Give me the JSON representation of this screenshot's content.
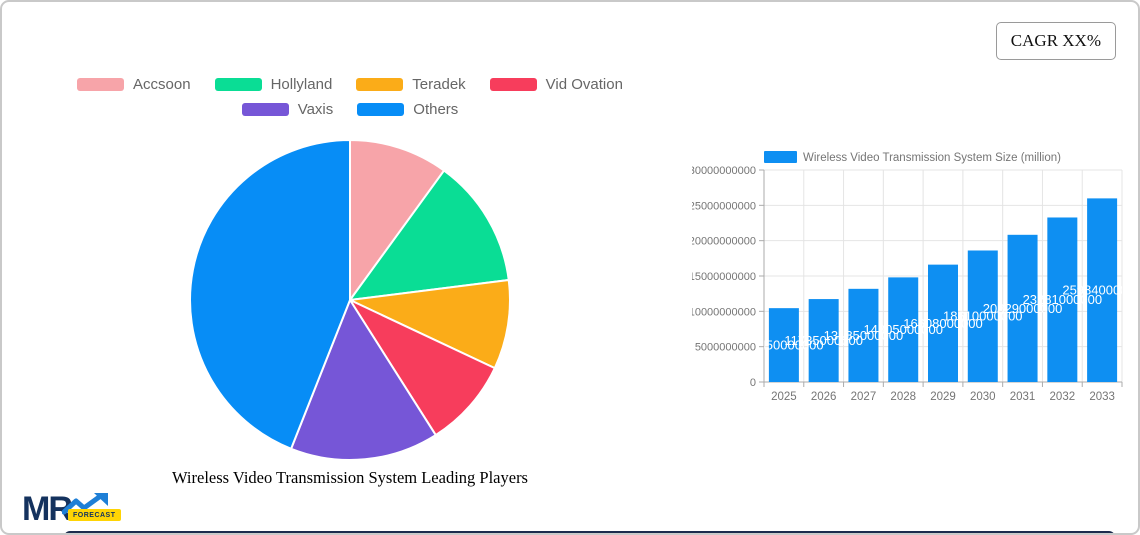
{
  "page": {
    "cagr_label": "CAGR XX%"
  },
  "logo": {
    "brand": "MR",
    "badge": "FORECAST",
    "brand_color": "#14325E",
    "arrow_color": "#1E7FD6",
    "badge_bg": "#FFD404",
    "badge_text_color": "#14325E"
  },
  "footer_bar_color": "#1C2B4D",
  "chart_data": [
    {
      "type": "pie",
      "title": "Wireless Video Transmission System Leading Players",
      "legend_position": "top",
      "start_angle": "12-oclock",
      "direction": "clockwise",
      "slice_border_color": "#FFFFFF",
      "slices": [
        {
          "label": "Accsoon",
          "percent": 10,
          "color": "#F7A4A9"
        },
        {
          "label": "Hollyland",
          "percent": 13,
          "color": "#0ADD95"
        },
        {
          "label": "Teradek",
          "percent": 9,
          "color": "#FBAC18"
        },
        {
          "label": "Vid Ovation",
          "percent": 9,
          "color": "#F73D5C"
        },
        {
          "label": "Vaxis",
          "percent": 15,
          "color": "#7656D7"
        },
        {
          "label": "Others",
          "percent": 44,
          "color": "#078DF6"
        }
      ]
    },
    {
      "type": "bar",
      "legend_label": "Wireless Video Transmission System Size (million)",
      "categories": [
        "2025",
        "2026",
        "2027",
        "2028",
        "2029",
        "2030",
        "2031",
        "2032",
        "2033"
      ],
      "values": [
        10450000000,
        11735000000,
        13185000000,
        14805000000,
        16608000000,
        18610000000,
        20829000000,
        23281000000,
        25984000000
      ],
      "bar_color": "#0E8FF2",
      "value_label_color": "#FFFFFF",
      "ylim": [
        0,
        30000000000
      ],
      "ytick_step": 5000000000,
      "yticks": [
        "0",
        "5000000000",
        "10000000000",
        "15000000000",
        "20000000000",
        "25000000000",
        "30000000000"
      ],
      "grid": true,
      "axis_text_color": "#757575",
      "grid_color": "#E4E4E4",
      "axis_line_color": "#ABABAB"
    }
  ]
}
